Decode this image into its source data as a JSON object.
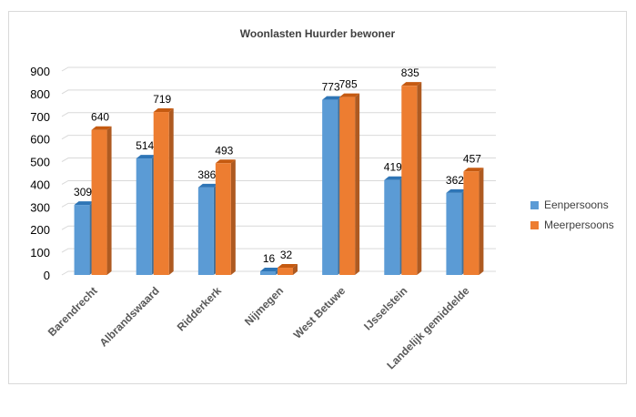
{
  "chart_data": {
    "type": "bar",
    "title": "Woonlasten Huurder bewoner",
    "categories": [
      "Barendrecht",
      "Albrandswaard",
      "Ridderkerk",
      "Nijmegen",
      "West Betuwe",
      "IJsselstein",
      "Landelijk gemiddelde"
    ],
    "series": [
      {
        "name": "Eenpersoons",
        "values": [
          309,
          514,
          386,
          16,
          773,
          419,
          362
        ],
        "color": "#5B9BD5",
        "side_color": "#41719C",
        "top_color": "#2E75B6"
      },
      {
        "name": "Meerpersoons",
        "values": [
          640,
          719,
          493,
          32,
          785,
          835,
          457
        ],
        "color": "#ED7D31",
        "side_color": "#AE5A21",
        "top_color": "#C55A11"
      }
    ],
    "ylim": [
      0,
      900
    ],
    "yticks": [
      0,
      100,
      200,
      300,
      400,
      500,
      600,
      700,
      800,
      900
    ],
    "grid": true,
    "legend_position": "right",
    "xlabel": "",
    "ylabel": ""
  }
}
